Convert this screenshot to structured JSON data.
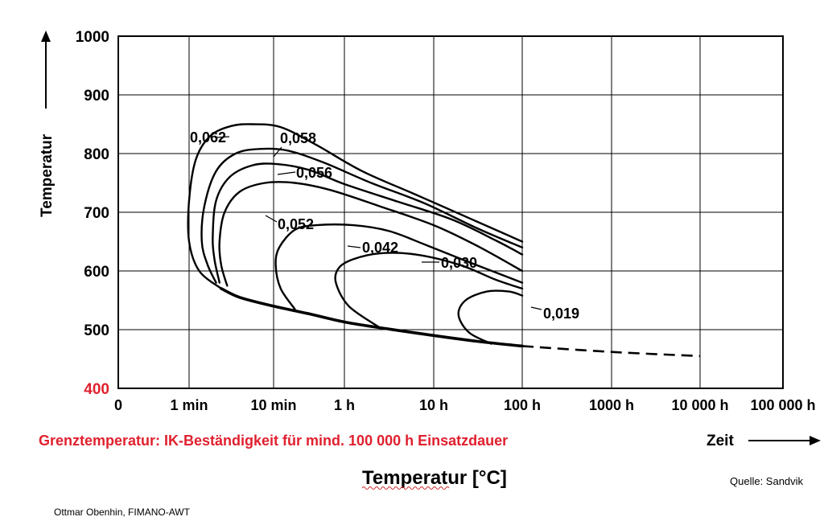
{
  "chart_data": {
    "type": "line",
    "ylabel": "Temperatur",
    "xlabel": "Zeit",
    "footer_title": "Temperatur [°C]",
    "caption": "Grenztemperatur: IK-Beständigkeit für mind. 100 000 h Einsatzdauer",
    "source": "Quelle: Sandvik",
    "x_ticks": [
      "0",
      "1 min",
      "10 min",
      "1 h",
      "10 h",
      "100 h",
      "1000 h",
      "10 000 h",
      "100 000 h"
    ],
    "y_ticks": [
      "400",
      "500",
      "600",
      "700",
      "800",
      "900",
      "1000"
    ],
    "ylim": [
      400,
      1000
    ],
    "grid": true,
    "curves": [
      {
        "label": "0,062",
        "points": [
          [
            1.38,
            570
          ],
          [
            1.12,
            600
          ],
          [
            1.0,
            650
          ],
          [
            1.0,
            720
          ],
          [
            1.08,
            790
          ],
          [
            1.25,
            830
          ],
          [
            1.5,
            847
          ],
          [
            1.75,
            850
          ],
          [
            2.1,
            845
          ],
          [
            2.6,
            815
          ],
          [
            3.2,
            770
          ],
          [
            3.8,
            730
          ],
          [
            4.4,
            690
          ],
          [
            5.0,
            650
          ]
        ]
      },
      {
        "label": "0,058",
        "points": [
          [
            1.32,
            580
          ],
          [
            1.22,
            610
          ],
          [
            1.15,
            650
          ],
          [
            1.18,
            710
          ],
          [
            1.32,
            770
          ],
          [
            1.55,
            800
          ],
          [
            1.85,
            808
          ],
          [
            2.2,
            805
          ],
          [
            2.7,
            785
          ],
          [
            3.3,
            750
          ],
          [
            3.9,
            715
          ],
          [
            4.5,
            672
          ],
          [
            5.0,
            640
          ]
        ]
      },
      {
        "label": "0,056",
        "points": [
          [
            1.36,
            580
          ],
          [
            1.3,
            620
          ],
          [
            1.28,
            660
          ],
          [
            1.32,
            720
          ],
          [
            1.48,
            760
          ],
          [
            1.75,
            780
          ],
          [
            2.05,
            782
          ],
          [
            2.5,
            772
          ],
          [
            3.0,
            748
          ],
          [
            3.6,
            718
          ],
          [
            4.2,
            688
          ],
          [
            4.7,
            652
          ],
          [
            5.0,
            628
          ]
        ]
      },
      {
        "label": "0,052",
        "points": [
          [
            1.45,
            575
          ],
          [
            1.38,
            610
          ],
          [
            1.36,
            650
          ],
          [
            1.42,
            700
          ],
          [
            1.6,
            735
          ],
          [
            1.9,
            750
          ],
          [
            2.3,
            750
          ],
          [
            2.8,
            738
          ],
          [
            3.4,
            710
          ],
          [
            4.0,
            678
          ],
          [
            4.5,
            642
          ],
          [
            5.0,
            600
          ]
        ]
      },
      {
        "label": "0,042",
        "points": [
          [
            2.3,
            535
          ],
          [
            2.1,
            570
          ],
          [
            2.03,
            610
          ],
          [
            2.08,
            640
          ],
          [
            2.3,
            670
          ],
          [
            2.6,
            678
          ],
          [
            3.1,
            678
          ],
          [
            3.5,
            668
          ],
          [
            3.9,
            645
          ],
          [
            4.4,
            615
          ],
          [
            5.0,
            580
          ]
        ]
      },
      {
        "label": "0,030",
        "points": [
          [
            3.38,
            505
          ],
          [
            3.05,
            540
          ],
          [
            2.88,
            580
          ],
          [
            2.92,
            605
          ],
          [
            3.1,
            620
          ],
          [
            3.4,
            630
          ],
          [
            3.8,
            628
          ],
          [
            4.3,
            610
          ],
          [
            4.7,
            585
          ],
          [
            5.0,
            570
          ]
        ]
      },
      {
        "label": "0,019",
        "points": [
          [
            4.65,
            476
          ],
          [
            4.4,
            495
          ],
          [
            4.28,
            525
          ],
          [
            4.36,
            550
          ],
          [
            4.6,
            565
          ],
          [
            4.85,
            565
          ],
          [
            5.0,
            558
          ]
        ]
      }
    ],
    "boundary": {
      "points": [
        [
          1.38,
          570
        ],
        [
          1.6,
          555
        ],
        [
          2.0,
          540
        ],
        [
          2.5,
          527
        ],
        [
          3.0,
          513
        ],
        [
          3.5,
          501
        ],
        [
          4.0,
          490
        ],
        [
          4.5,
          480
        ],
        [
          5.0,
          472
        ]
      ]
    },
    "boundary_extrapolated": {
      "points": [
        [
          5.0,
          472
        ],
        [
          6.0,
          462
        ],
        [
          7.0,
          455
        ]
      ]
    }
  },
  "author": "Ottmar Obenhin, FIMANO-AWT"
}
